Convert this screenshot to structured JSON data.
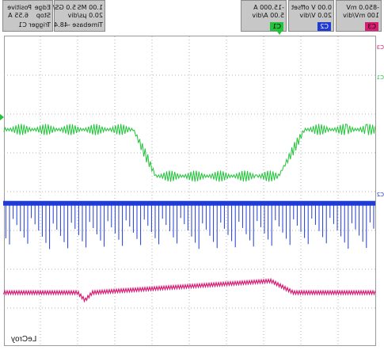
{
  "scope": {
    "brand": "LeCroy",
    "channels": [
      {
        "id": "C3",
        "name": "C3",
        "scale": "100 mV/div",
        "offset": "-850.0 mV",
        "color": "#d81b73"
      },
      {
        "id": "C2",
        "name": "C2",
        "scale": "20.0 V/div",
        "offset": "0.00 V offset",
        "color": "#1f3bd6"
      },
      {
        "id": "C1",
        "name": "C1",
        "scale": "5.00 A/div",
        "offset": "-15.000 A",
        "color": "#22c43a"
      }
    ],
    "timebase": {
      "label": "Timebase",
      "delay": "-48.4 µs",
      "horizontal": "20.0 µs/div",
      "sample_rate": "1.00 MS",
      "sample": "5.0 GS/s"
    },
    "trigger": {
      "label": "Trigger",
      "channel": "C1",
      "mode": "Stop",
      "level": "6.55 A",
      "type": "Edge",
      "slope": "Positive"
    }
  },
  "chart_data": {
    "type": "line",
    "title": "",
    "xlabel": "",
    "ylabel": "",
    "grid": "10x8 divisions (dotted)",
    "series": [
      {
        "name": "C1",
        "color": "#22c43a",
        "x": [
          0,
          1.9,
          2.6,
          5.9,
          6.5,
          10
        ],
        "y": [
          2.4,
          2.4,
          3.6,
          3.6,
          2.4,
          2.4
        ]
      },
      {
        "name": "C2",
        "color": "#1f3bd6",
        "x": [
          0,
          10
        ],
        "y": [
          4.3,
          4.3
        ]
      },
      {
        "name": "C3",
        "color": "#d81b73",
        "x": [
          0,
          2.2,
          2.8,
          7.6,
          7.8,
          8.0,
          10
        ],
        "y": [
          6.6,
          6.6,
          6.3,
          6.6,
          6.8,
          6.6,
          6.6
        ]
      }
    ]
  }
}
